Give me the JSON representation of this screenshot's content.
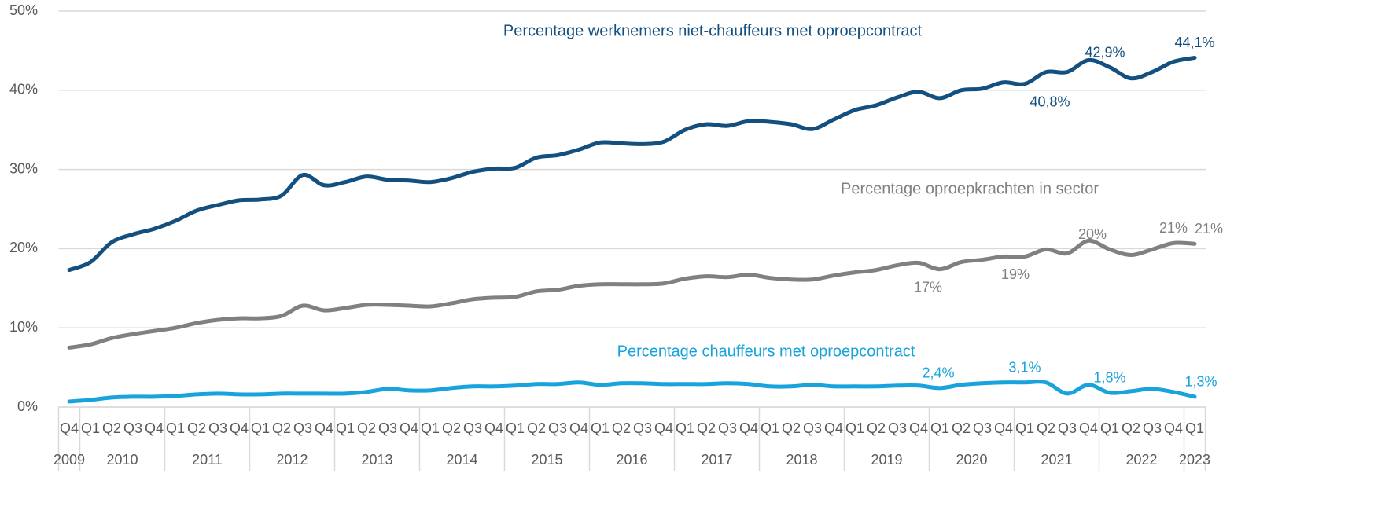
{
  "chart_data": {
    "type": "line",
    "categories": [
      "Q4",
      "Q1",
      "Q2",
      "Q3",
      "Q4",
      "Q1",
      "Q2",
      "Q3",
      "Q4",
      "Q1",
      "Q2",
      "Q3",
      "Q4",
      "Q1",
      "Q2",
      "Q3",
      "Q4",
      "Q1",
      "Q2",
      "Q3",
      "Q4",
      "Q1",
      "Q2",
      "Q3",
      "Q4",
      "Q1",
      "Q2",
      "Q3",
      "Q4",
      "Q1",
      "Q2",
      "Q3",
      "Q4",
      "Q1",
      "Q2",
      "Q3",
      "Q4",
      "Q1",
      "Q2",
      "Q3",
      "Q4",
      "Q1",
      "Q2",
      "Q3",
      "Q4",
      "Q1",
      "Q2",
      "Q3",
      "Q4",
      "Q1",
      "Q2",
      "Q3",
      "Q4",
      "Q1"
    ],
    "year_groups": [
      "2009",
      "2010",
      "2011",
      "2012",
      "2013",
      "2014",
      "2015",
      "2016",
      "2017",
      "2018",
      "2019",
      "2020",
      "2021",
      "2022",
      "2023"
    ],
    "ylim": [
      0,
      50
    ],
    "yticks": [
      {
        "value": 0,
        "label": "0%"
      },
      {
        "value": 10,
        "label": "10%"
      },
      {
        "value": 20,
        "label": "20%"
      },
      {
        "value": 30,
        "label": "30%"
      },
      {
        "value": 40,
        "label": "40%"
      },
      {
        "value": 50,
        "label": "50%"
      }
    ],
    "grid": true,
    "series": [
      {
        "name": "Percentage werknemers niet-chauffeurs met oproepcontract",
        "color": "#13507f",
        "values": [
          17.3,
          18.3,
          20.8,
          21.8,
          22.5,
          23.5,
          24.8,
          25.5,
          26.1,
          26.2,
          26.7,
          29.3,
          28.0,
          28.4,
          29.1,
          28.7,
          28.6,
          28.4,
          28.9,
          29.7,
          30.1,
          30.2,
          31.5,
          31.8,
          32.5,
          33.4,
          33.3,
          33.2,
          33.5,
          35.0,
          35.7,
          35.5,
          36.1,
          36.0,
          35.7,
          35.1,
          36.3,
          37.5,
          38.1,
          39.1,
          39.8,
          39.0,
          40.0,
          40.2,
          41.0,
          40.8,
          42.3,
          42.3,
          43.8,
          42.9,
          41.5,
          42.3,
          43.6,
          44.1
        ],
        "value_labels": [
          null,
          null,
          null,
          null,
          null,
          null,
          null,
          null,
          null,
          null,
          null,
          null,
          null,
          null,
          null,
          null,
          null,
          null,
          null,
          null,
          null,
          null,
          null,
          null,
          null,
          null,
          null,
          null,
          null,
          null,
          null,
          null,
          null,
          null,
          null,
          null,
          null,
          null,
          null,
          null,
          null,
          null,
          null,
          null,
          null,
          "40,8%",
          null,
          null,
          null,
          "42,9%",
          null,
          null,
          null,
          "44,1%"
        ]
      },
      {
        "name": "Percentage oproepkrachten in sector",
        "color": "#808080",
        "values": [
          7.5,
          7.9,
          8.7,
          9.2,
          9.6,
          10.0,
          10.6,
          11.0,
          11.2,
          11.2,
          11.5,
          12.8,
          12.2,
          12.5,
          12.9,
          12.9,
          12.8,
          12.7,
          13.1,
          13.6,
          13.8,
          13.9,
          14.6,
          14.8,
          15.3,
          15.5,
          15.5,
          15.5,
          15.6,
          16.2,
          16.5,
          16.4,
          16.7,
          16.3,
          16.1,
          16.1,
          16.6,
          17.0,
          17.3,
          17.9,
          18.2,
          17.4,
          18.3,
          18.6,
          19.0,
          19.0,
          19.9,
          19.4,
          21.0,
          19.9,
          19.2,
          19.9,
          20.7,
          20.6
        ],
        "value_labels": [
          null,
          null,
          null,
          null,
          null,
          null,
          null,
          null,
          null,
          null,
          null,
          null,
          null,
          null,
          null,
          null,
          null,
          null,
          null,
          null,
          null,
          null,
          null,
          null,
          null,
          null,
          null,
          null,
          null,
          null,
          null,
          null,
          null,
          null,
          null,
          null,
          null,
          null,
          null,
          null,
          null,
          "17%",
          null,
          null,
          null,
          "19%",
          null,
          null,
          null,
          "20%",
          null,
          null,
          "21%",
          "21%"
        ]
      },
      {
        "name": "Percentage chauffeurs met oproepcontract",
        "color": "#18a3dd",
        "values": [
          0.7,
          0.9,
          1.2,
          1.3,
          1.3,
          1.4,
          1.6,
          1.7,
          1.6,
          1.6,
          1.7,
          1.7,
          1.7,
          1.7,
          1.9,
          2.3,
          2.1,
          2.1,
          2.4,
          2.6,
          2.6,
          2.7,
          2.9,
          2.9,
          3.1,
          2.8,
          3.0,
          3.0,
          2.9,
          2.9,
          2.9,
          3.0,
          2.9,
          2.6,
          2.6,
          2.8,
          2.6,
          2.6,
          2.6,
          2.7,
          2.7,
          2.4,
          2.8,
          3.0,
          3.1,
          3.1,
          3.1,
          1.7,
          2.8,
          1.8,
          2.0,
          2.3,
          1.9,
          1.3
        ],
        "value_labels": [
          null,
          null,
          null,
          null,
          null,
          null,
          null,
          null,
          null,
          null,
          null,
          null,
          null,
          null,
          null,
          null,
          null,
          null,
          null,
          null,
          null,
          null,
          null,
          null,
          null,
          null,
          null,
          null,
          null,
          null,
          null,
          null,
          null,
          null,
          null,
          null,
          null,
          null,
          null,
          null,
          null,
          "2,4%",
          null,
          null,
          null,
          "3,1%",
          null,
          null,
          null,
          "1,8%",
          null,
          null,
          null,
          "1,3%"
        ]
      }
    ]
  }
}
